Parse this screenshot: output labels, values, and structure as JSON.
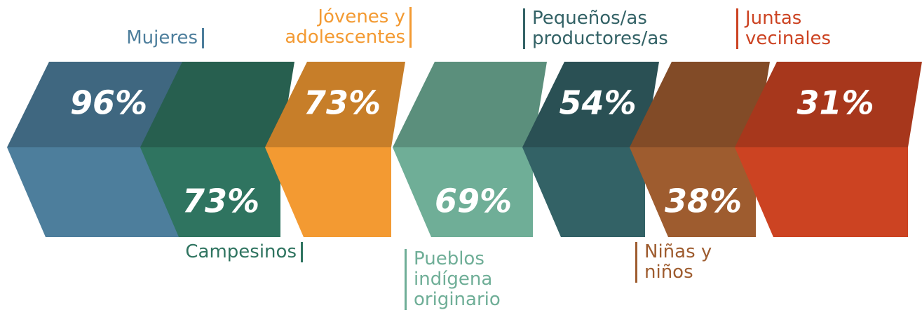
{
  "chart_data": {
    "type": "blocks",
    "categories": [
      "Mujeres",
      "Campesinos",
      "Jóvenes y adolescentes",
      "Pueblos indígena originario",
      "Pequeños/as productores/as",
      "Niñas y niños",
      "Juntas vecinales"
    ],
    "values": [
      96,
      73,
      73,
      69,
      54,
      38,
      31
    ],
    "value_labels": [
      "96%",
      "73%",
      "73%",
      "69%",
      "54%",
      "38%",
      "31%"
    ],
    "colors": [
      "#4d7e9c",
      "#2f7460",
      "#f39a32",
      "#6fae97",
      "#336266",
      "#9e5c2f",
      "#cc4322"
    ]
  }
}
